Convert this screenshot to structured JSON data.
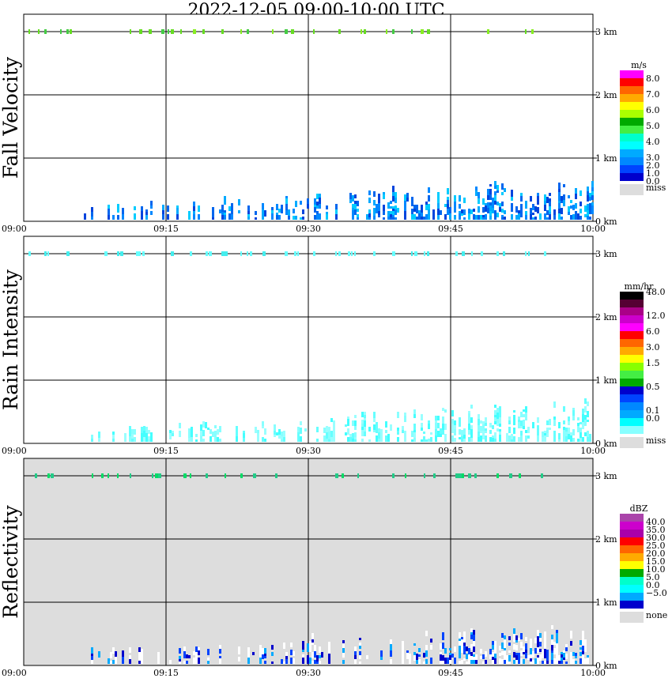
{
  "title": "2022-12-05   09:00-10:00 UTC",
  "chart_data": [
    {
      "type": "heatmap",
      "title": "Fall Velocity",
      "x_ticks": [
        "09:00",
        "09:15",
        "09:30",
        "09:45",
        "10:00"
      ],
      "y_ticks": [
        "0 km",
        "1 km",
        "2 km",
        "3 km"
      ],
      "ylim": [
        0,
        3.5
      ],
      "background": "#ffffff",
      "legend": {
        "unit": "m/s",
        "colors": [
          "#ff00ff",
          "#ff0000",
          "#ff6600",
          "#ffaa00",
          "#ffff00",
          "#aaff00",
          "#00aa00",
          "#44ee44",
          "#00ffcc",
          "#00ffff",
          "#00aaff",
          "#0088ff",
          "#0044ff",
          "#0000cc"
        ],
        "labels": [
          "8.0",
          "7.0",
          "6.0",
          "5.0",
          "4.0",
          "3.0",
          "2.0",
          "1.0",
          "0.0"
        ],
        "label_slots": [
          1,
          3,
          5,
          7,
          9,
          11,
          12,
          13,
          14
        ],
        "miss_label": "miss"
      }
    },
    {
      "type": "heatmap",
      "title": "Rain Intensity",
      "x_ticks": [
        "09:00",
        "09:15",
        "09:30",
        "09:45",
        "10:00"
      ],
      "y_ticks": [
        "0 km",
        "1 km",
        "2 km",
        "3 km"
      ],
      "ylim": [
        0,
        3.5
      ],
      "background": "#ffffff",
      "legend": {
        "unit": "mm/hr",
        "colors": [
          "#000000",
          "#550033",
          "#aa0088",
          "#cc00cc",
          "#ff00ff",
          "#ff0000",
          "#ff6600",
          "#ffaa00",
          "#ffff00",
          "#88ff00",
          "#44ee44",
          "#00aa00",
          "#0000cc",
          "#0044ff",
          "#0088ff",
          "#00aaff",
          "#00ffff",
          "#88ffff"
        ],
        "labels": [
          "48.0",
          "12.0",
          "6.0",
          "3.0",
          "1.5",
          "0.5",
          "0.1",
          "0.0"
        ],
        "label_slots": [
          0,
          3,
          5,
          7,
          9,
          12,
          15,
          16
        ],
        "miss_label": "miss"
      }
    },
    {
      "type": "heatmap",
      "title": "Reflectivity",
      "x_ticks": [
        "09:00",
        "09:15",
        "09:30",
        "09:45",
        "10:00"
      ],
      "y_ticks": [
        "0 km",
        "1 km",
        "2 km",
        "3 km"
      ],
      "ylim": [
        0,
        3.5
      ],
      "background": "#dddddd",
      "legend": {
        "unit": "dBZ",
        "colors": [
          "#aa44aa",
          "#cc00cc",
          "#aa00aa",
          "#ff0000",
          "#ff6600",
          "#ffaa00",
          "#ffff00",
          "#00aa00",
          "#00ffcc",
          "#00ffff",
          "#00aaff",
          "#0000cc"
        ],
        "labels": [
          "40.0",
          "35.0",
          "30.0",
          "25.0",
          "20.0",
          "15.0",
          "10.0",
          "5.0",
          "0.0",
          "−5.0"
        ],
        "label_slots": [
          1,
          2,
          3,
          4,
          5,
          6,
          7,
          8,
          9,
          10
        ],
        "miss_label": "none"
      }
    }
  ]
}
